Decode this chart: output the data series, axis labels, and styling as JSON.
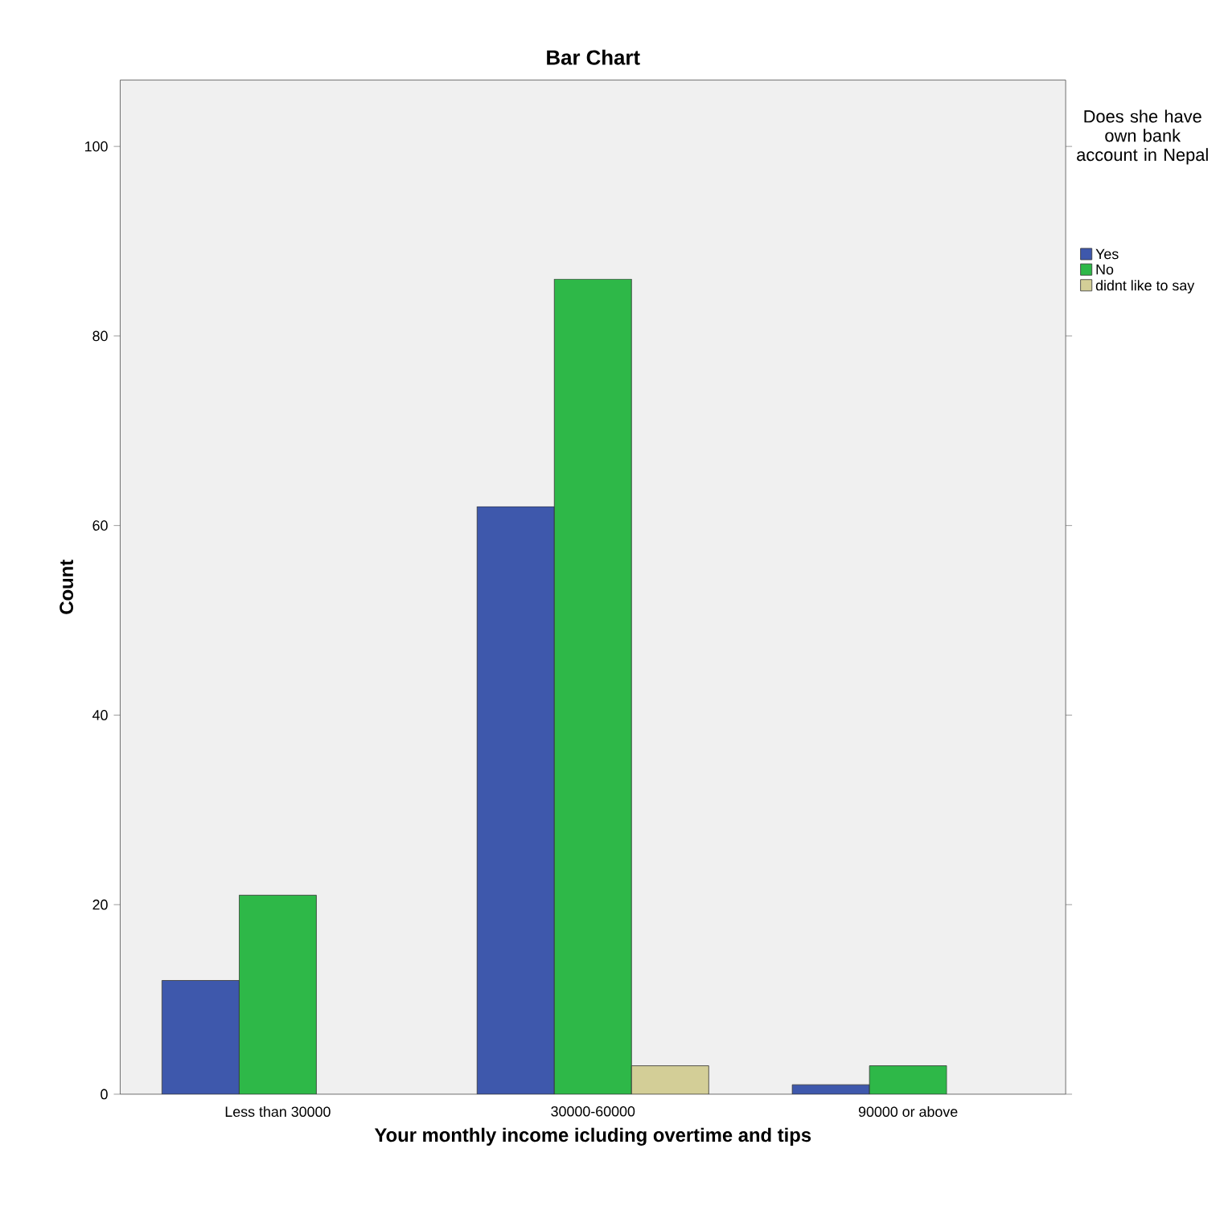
{
  "chart_data": {
    "type": "bar",
    "title": "Bar Chart",
    "xlabel": "Your monthly income icluding overtime and tips",
    "ylabel": "Count",
    "legend_title": "Does she have own bank account in Nepal",
    "legend": "right",
    "categories": [
      "Less than 30000",
      "30000-60000",
      "90000 or above"
    ],
    "series": [
      {
        "name": "Yes",
        "color": "#3e58ac",
        "values": [
          12,
          62,
          1
        ]
      },
      {
        "name": "No",
        "color": "#2eb848",
        "values": [
          21,
          86,
          3
        ]
      },
      {
        "name": "didnt like to say",
        "color": "#d3ce97",
        "values": [
          null,
          3,
          null
        ]
      }
    ],
    "ylim": [
      0,
      107
    ],
    "yticks": [
      0,
      20,
      40,
      60,
      80,
      100
    ],
    "grid": false
  }
}
